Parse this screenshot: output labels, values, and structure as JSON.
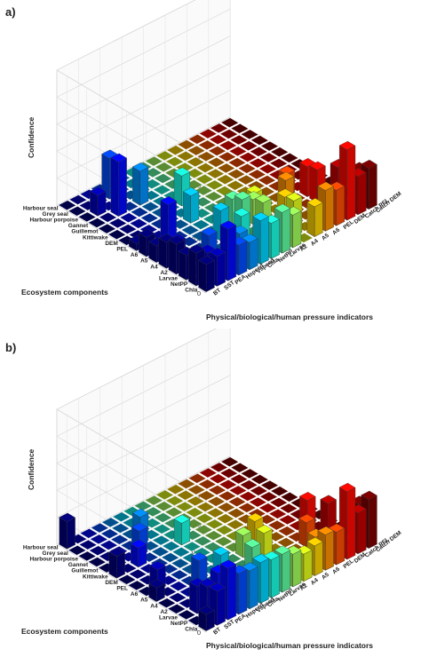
{
  "chart_data": [
    {
      "panel_label": "a)",
      "type": "bar3d",
      "xlabel": "Physical/biological/human pressure indicators",
      "ylabel": "Ecosystem components",
      "zlabel": "Confidence",
      "zlim": [
        0,
        1
      ],
      "zticks": [
        "0",
        "0.2",
        "0.4",
        "0.6",
        "0.8",
        "1"
      ],
      "grid": true,
      "x_categories": [
        "BT",
        "SST",
        "PEA",
        "Hspeed",
        "Vspeed",
        "Chla",
        "NetPP",
        "Larvae",
        "A2",
        "A4",
        "A5",
        "A6",
        "PEL",
        "DEM",
        "Catch PEL",
        "Catch DEM"
      ],
      "y_categories": [
        "Chla",
        "NetPP",
        "Larvae",
        "A2",
        "A4",
        "A5",
        "A6",
        "PEL",
        "DEM",
        "Kittiwake",
        "Guillemot",
        "Gannet",
        "Harbour porpoise",
        "Grey seal",
        "Harbour seal"
      ],
      "bars": [
        {
          "x": "BT",
          "y": "Chla",
          "z": 0.2
        },
        {
          "x": "BT",
          "y": "NetPP",
          "z": 0.24
        },
        {
          "x": "BT",
          "y": "Larvae",
          "z": 0.18
        },
        {
          "x": "BT",
          "y": "A2",
          "z": 0.22
        },
        {
          "x": "BT",
          "y": "A4",
          "z": 0.19
        },
        {
          "x": "BT",
          "y": "A5",
          "z": 0.12
        },
        {
          "x": "BT",
          "y": "A6",
          "z": 0.14
        },
        {
          "x": "BT",
          "y": "PEL",
          "z": 0.05
        },
        {
          "x": "SST",
          "y": "Chla",
          "z": 0.22
        },
        {
          "x": "SST",
          "y": "NetPP",
          "z": 0.2
        },
        {
          "x": "SST",
          "y": "A4",
          "z": 0.15
        },
        {
          "x": "SST",
          "y": "Harbour porpoise",
          "z": 0.15
        },
        {
          "x": "PEA",
          "y": "Chla",
          "z": 0.38
        },
        {
          "x": "PEA",
          "y": "A6",
          "z": 0.3
        },
        {
          "x": "PEA",
          "y": "Gannet",
          "z": 0.4
        },
        {
          "x": "Hspeed",
          "y": "Chla",
          "z": 0.22
        },
        {
          "x": "Hspeed",
          "y": "A2",
          "z": 0.16
        },
        {
          "x": "Hspeed",
          "y": "Grey seal",
          "z": 0.3
        },
        {
          "x": "Vspeed",
          "y": "Chla",
          "z": 0.2
        },
        {
          "x": "Vspeed",
          "y": "NetPP",
          "z": 0.22
        },
        {
          "x": "Vspeed",
          "y": "Gannet",
          "z": 0.25
        },
        {
          "x": "Chla",
          "y": "Chla",
          "z": 0.32
        },
        {
          "x": "Chla",
          "y": "A4",
          "z": 0.22
        },
        {
          "x": "Chla",
          "y": "PEL",
          "z": 0.2
        },
        {
          "x": "NetPP",
          "y": "Chla",
          "z": 0.26
        },
        {
          "x": "NetPP",
          "y": "A2",
          "z": 0.18
        },
        {
          "x": "NetPP",
          "y": "Kittiwake",
          "z": 0.22
        },
        {
          "x": "Larvae",
          "y": "Chla",
          "z": 0.3
        },
        {
          "x": "Larvae",
          "y": "A4",
          "z": 0.22
        },
        {
          "x": "Larvae",
          "y": "A5",
          "z": 0.18
        },
        {
          "x": "A2",
          "y": "Chla",
          "z": 0.24
        },
        {
          "x": "A2",
          "y": "A2",
          "z": 0.2
        },
        {
          "x": "A2",
          "y": "A4",
          "z": 0.18
        },
        {
          "x": "A4",
          "y": "NetPP",
          "z": 0.26
        },
        {
          "x": "A4",
          "y": "A5",
          "z": 0.14
        },
        {
          "x": "A5",
          "y": "Chla",
          "z": 0.22
        },
        {
          "x": "A5",
          "y": "A2",
          "z": 0.16
        },
        {
          "x": "A6",
          "y": "Chla",
          "z": 0.3
        },
        {
          "x": "A6",
          "y": "A4",
          "z": 0.2
        },
        {
          "x": "PEL",
          "y": "Chla",
          "z": 0.26
        },
        {
          "x": "PEL",
          "y": "NetPP",
          "z": 0.2
        },
        {
          "x": "PEL",
          "y": "A5",
          "z": 0.16
        },
        {
          "x": "DEM",
          "y": "Chla",
          "z": 0.52
        },
        {
          "x": "DEM",
          "y": "A2",
          "z": 0.24
        },
        {
          "x": "DEM",
          "y": "A4",
          "z": 0.22
        },
        {
          "x": "Catch PEL",
          "y": "Chla",
          "z": 0.28
        },
        {
          "x": "Catch PEL",
          "y": "Larvae",
          "z": 0.26
        },
        {
          "x": "Catch DEM",
          "y": "Chla",
          "z": 0.3
        },
        {
          "x": "Catch DEM",
          "y": "NetPP",
          "z": 0.24
        }
      ]
    },
    {
      "panel_label": "b)",
      "type": "bar3d",
      "xlabel": "Physical/biological/human pressure indicators",
      "ylabel": "Ecosystem components",
      "zlabel": "Confidence",
      "zlim": [
        0,
        1
      ],
      "zticks": [
        "0",
        "0.2",
        "0.4",
        "0.6",
        "0.8",
        "1"
      ],
      "grid": true,
      "x_categories": [
        "BT",
        "SST",
        "PEA",
        "Hspeed",
        "Vspeed",
        "Chla",
        "NetPP",
        "Larvae",
        "A2",
        "A4",
        "A5",
        "A6",
        "PEL",
        "DEM",
        "Catch PEL",
        "Catch DEM"
      ],
      "y_categories": [
        "Chla",
        "NetPP",
        "Larvae",
        "A2",
        "A4",
        "A5",
        "A6",
        "PEL",
        "DEM",
        "Kittiwake",
        "Guillemot",
        "Gannet",
        "Harbour porpoise",
        "Grey seal",
        "Harbour seal"
      ],
      "bars": [
        {
          "x": "BT",
          "y": "Chla",
          "z": 0.12
        },
        {
          "x": "BT",
          "y": "A5",
          "z": 0.1
        },
        {
          "x": "BT",
          "y": "Kittiwake",
          "z": 0.16
        },
        {
          "x": "BT",
          "y": "Harbour seal",
          "z": 0.2
        },
        {
          "x": "SST",
          "y": "Chla",
          "z": 0.25
        },
        {
          "x": "SST",
          "y": "NetPP",
          "z": 0.24
        },
        {
          "x": "SST",
          "y": "Larvae",
          "z": 0.2
        },
        {
          "x": "SST",
          "y": "A6",
          "z": 0.15
        },
        {
          "x": "PEA",
          "y": "Chla",
          "z": 0.38
        },
        {
          "x": "PEA",
          "y": "NetPP",
          "z": 0.3
        },
        {
          "x": "PEA",
          "y": "Kittiwake",
          "z": 0.14
        },
        {
          "x": "Hspeed",
          "y": "Chla",
          "z": 0.3
        },
        {
          "x": "Hspeed",
          "y": "A4",
          "z": 0.22
        },
        {
          "x": "Hspeed",
          "y": "Guillemot",
          "z": 0.18
        },
        {
          "x": "Vspeed",
          "y": "Chla",
          "z": 0.28
        },
        {
          "x": "Vspeed",
          "y": "A2",
          "z": 0.12
        },
        {
          "x": "Vspeed",
          "y": "Gannet",
          "z": 0.2
        },
        {
          "x": "Chla",
          "y": "Chla",
          "z": 0.3
        },
        {
          "x": "Chla",
          "y": "A4",
          "z": 0.18
        },
        {
          "x": "NetPP",
          "y": "Chla",
          "z": 0.28
        },
        {
          "x": "NetPP",
          "y": "NetPP",
          "z": 0.22
        },
        {
          "x": "NetPP",
          "y": "Kittiwake",
          "z": 0.16
        },
        {
          "x": "Larvae",
          "y": "Chla",
          "z": 0.28
        },
        {
          "x": "Larvae",
          "y": "A2",
          "z": 0.2
        },
        {
          "x": "A2",
          "y": "Chla",
          "z": 0.24
        },
        {
          "x": "A2",
          "y": "A5",
          "z": 0.16
        },
        {
          "x": "A4",
          "y": "Chla",
          "z": 0.2
        },
        {
          "x": "A4",
          "y": "A4",
          "z": 0.18
        },
        {
          "x": "A5",
          "y": "Chla",
          "z": 0.22
        },
        {
          "x": "A5",
          "y": "A6",
          "z": 0.14
        },
        {
          "x": "A6",
          "y": "Chla",
          "z": 0.26
        },
        {
          "x": "A6",
          "y": "NetPP",
          "z": 0.2
        },
        {
          "x": "PEL",
          "y": "Chla",
          "z": 0.24
        },
        {
          "x": "PEL",
          "y": "A2",
          "z": 0.18
        },
        {
          "x": "DEM",
          "y": "Chla",
          "z": 0.5
        },
        {
          "x": "DEM",
          "y": "A4",
          "z": 0.26
        },
        {
          "x": "Catch PEL",
          "y": "Chla",
          "z": 0.3
        },
        {
          "x": "Catch PEL",
          "y": "A2",
          "z": 0.24
        },
        {
          "x": "Catch DEM",
          "y": "Chla",
          "z": 0.36
        },
        {
          "x": "Catch DEM",
          "y": "NetPP",
          "z": 0.28
        }
      ]
    }
  ]
}
